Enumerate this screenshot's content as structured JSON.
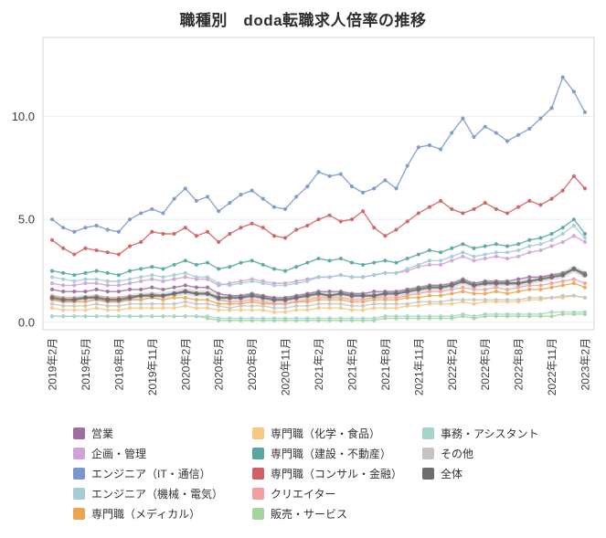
{
  "chart_data": {
    "type": "line",
    "title": "職種別　doda転職求人倍率の推移",
    "xlabel": "",
    "ylabel": "",
    "ylim": [
      0,
      12.5
    ],
    "y_ticks": [
      0.0,
      5.0,
      10.0
    ],
    "y_tick_labels": [
      "0.0",
      "5.0",
      "10.0"
    ],
    "x_tick_every": 3,
    "x_tick_labels": [
      "2019年2月",
      "2019年5月",
      "2019年8月",
      "2019年11月",
      "2020年2月",
      "2020年5月",
      "2020年8月",
      "2020年11月",
      "2021年2月",
      "2021年5月",
      "2021年8月",
      "2021年11月",
      "2022年2月",
      "2022年5月",
      "2022年8月",
      "2022年11月",
      "2023年2月"
    ],
    "grid": true,
    "legend_position": "bottom",
    "categories": [
      "2019年2月",
      "2019年3月",
      "2019年4月",
      "2019年5月",
      "2019年6月",
      "2019年7月",
      "2019年8月",
      "2019年9月",
      "2019年10月",
      "2019年11月",
      "2019年12月",
      "2020年1月",
      "2020年2月",
      "2020年3月",
      "2020年4月",
      "2020年5月",
      "2020年6月",
      "2020年7月",
      "2020年8月",
      "2020年9月",
      "2020年10月",
      "2020年11月",
      "2020年12月",
      "2021年1月",
      "2021年2月",
      "2021年3月",
      "2021年4月",
      "2021年5月",
      "2021年6月",
      "2021年7月",
      "2021年8月",
      "2021年9月",
      "2021年10月",
      "2021年11月",
      "2021年12月",
      "2022年1月",
      "2022年2月",
      "2022年3月",
      "2022年4月",
      "2022年5月",
      "2022年6月",
      "2022年7月",
      "2022年8月",
      "2022年9月",
      "2022年10月",
      "2022年11月",
      "2022年12月",
      "2023年1月",
      "2023年2月"
    ],
    "series": [
      {
        "name": "営業",
        "color": "#9c6f9e",
        "values": [
          1.6,
          1.5,
          1.5,
          1.5,
          1.6,
          1.5,
          1.5,
          1.6,
          1.6,
          1.7,
          1.6,
          1.7,
          1.8,
          1.7,
          1.7,
          1.4,
          1.3,
          1.3,
          1.4,
          1.3,
          1.2,
          1.2,
          1.3,
          1.4,
          1.5,
          1.5,
          1.5,
          1.4,
          1.4,
          1.5,
          1.5,
          1.5,
          1.6,
          1.7,
          1.8,
          1.8,
          1.9,
          2.1,
          1.9,
          2.0,
          2.0,
          2.0,
          2.1,
          2.2,
          2.2,
          2.3,
          2.4,
          2.6,
          2.4
        ]
      },
      {
        "name": "企画・管理",
        "color": "#cfa3d6",
        "values": [
          1.9,
          1.8,
          1.8,
          1.9,
          1.9,
          1.8,
          1.8,
          1.9,
          2.0,
          2.1,
          2.0,
          2.1,
          2.2,
          2.1,
          2.1,
          1.8,
          1.9,
          2.0,
          2.1,
          2.0,
          1.9,
          1.9,
          2.0,
          2.1,
          2.2,
          2.2,
          2.3,
          2.2,
          2.2,
          2.3,
          2.4,
          2.4,
          2.5,
          2.7,
          2.8,
          2.8,
          3.0,
          3.2,
          3.0,
          3.1,
          3.2,
          3.1,
          3.2,
          3.4,
          3.5,
          3.7,
          3.9,
          4.2,
          3.9
        ]
      },
      {
        "name": "エンジニア（IT・通信）",
        "color": "#7b97c9",
        "values": [
          5.0,
          4.6,
          4.4,
          4.6,
          4.7,
          4.5,
          4.4,
          5.0,
          5.3,
          5.5,
          5.3,
          6.0,
          6.5,
          5.9,
          6.1,
          5.4,
          5.8,
          6.2,
          6.4,
          6.0,
          5.6,
          5.5,
          6.1,
          6.6,
          7.3,
          7.1,
          7.2,
          6.6,
          6.3,
          6.5,
          6.9,
          6.5,
          7.6,
          8.5,
          8.6,
          8.4,
          9.2,
          9.9,
          9.0,
          9.5,
          9.2,
          8.8,
          9.1,
          9.4,
          9.9,
          10.4,
          11.9,
          11.2,
          10.2
        ]
      },
      {
        "name": "エンジニア（機械・電気）",
        "color": "#a5cbd4",
        "values": [
          2.2,
          2.1,
          2.0,
          2.1,
          2.1,
          2.0,
          2.0,
          2.1,
          2.2,
          2.3,
          2.2,
          2.3,
          2.4,
          2.2,
          2.2,
          1.9,
          1.8,
          1.9,
          2.0,
          1.9,
          1.8,
          1.8,
          1.9,
          2.0,
          2.2,
          2.2,
          2.3,
          2.2,
          2.2,
          2.3,
          2.4,
          2.4,
          2.6,
          2.8,
          3.0,
          3.0,
          3.2,
          3.4,
          3.2,
          3.3,
          3.4,
          3.4,
          3.5,
          3.7,
          3.8,
          4.0,
          4.3,
          4.7,
          4.1
        ]
      },
      {
        "name": "専門職（メディカル）",
        "color": "#eaa64e",
        "values": [
          1.1,
          1.0,
          1.0,
          1.0,
          1.1,
          1.0,
          1.0,
          1.1,
          1.1,
          1.2,
          1.1,
          1.2,
          1.2,
          1.1,
          1.1,
          0.9,
          0.9,
          0.9,
          1.0,
          0.9,
          0.9,
          0.9,
          1.0,
          1.0,
          1.1,
          1.1,
          1.1,
          1.0,
          1.0,
          1.1,
          1.1,
          1.1,
          1.2,
          1.2,
          1.3,
          1.3,
          1.4,
          1.5,
          1.4,
          1.4,
          1.5,
          1.4,
          1.5,
          1.6,
          1.6,
          1.7,
          1.8,
          1.9,
          1.7
        ]
      },
      {
        "name": "専門職（化学・食品）",
        "color": "#f6c983",
        "values": [
          0.7,
          0.6,
          0.6,
          0.6,
          0.7,
          0.6,
          0.6,
          0.7,
          0.7,
          0.7,
          0.7,
          0.7,
          0.8,
          0.7,
          0.7,
          0.6,
          0.6,
          0.6,
          0.6,
          0.6,
          0.5,
          0.5,
          0.6,
          0.6,
          0.7,
          0.7,
          0.7,
          0.6,
          0.6,
          0.7,
          0.7,
          0.7,
          0.8,
          0.8,
          0.9,
          0.9,
          0.9,
          1.0,
          0.9,
          1.0,
          1.0,
          1.0,
          1.0,
          1.1,
          1.1,
          1.2,
          1.2,
          1.3,
          1.2
        ]
      },
      {
        "name": "専門職（建設・不動産）",
        "color": "#58a79e",
        "values": [
          2.5,
          2.4,
          2.3,
          2.4,
          2.5,
          2.4,
          2.3,
          2.5,
          2.6,
          2.7,
          2.6,
          2.8,
          3.0,
          2.8,
          2.9,
          2.6,
          2.7,
          2.9,
          3.0,
          2.8,
          2.6,
          2.5,
          2.7,
          2.9,
          3.1,
          3.0,
          3.1,
          2.9,
          2.8,
          2.9,
          3.0,
          2.9,
          3.1,
          3.3,
          3.5,
          3.4,
          3.6,
          3.8,
          3.6,
          3.7,
          3.8,
          3.7,
          3.8,
          4.0,
          4.1,
          4.3,
          4.6,
          5.0,
          4.3
        ]
      },
      {
        "name": "専門職（コンサル・金融）",
        "color": "#cf5f63",
        "values": [
          4.0,
          3.6,
          3.3,
          3.6,
          3.5,
          3.4,
          3.3,
          3.7,
          3.9,
          4.4,
          4.3,
          4.3,
          4.6,
          4.2,
          4.4,
          3.9,
          4.3,
          4.6,
          4.8,
          4.6,
          4.2,
          4.1,
          4.5,
          4.7,
          5.0,
          5.2,
          4.9,
          5.0,
          5.4,
          4.6,
          4.2,
          4.5,
          4.9,
          5.3,
          5.6,
          5.9,
          5.5,
          5.3,
          5.5,
          5.8,
          5.5,
          5.3,
          5.6,
          5.9,
          5.7,
          6.0,
          6.4,
          7.1,
          6.5
        ]
      },
      {
        "name": "クリエイター",
        "color": "#f19f9f",
        "values": [
          1.3,
          1.2,
          1.2,
          1.2,
          1.3,
          1.2,
          1.2,
          1.3,
          1.3,
          1.4,
          1.3,
          1.4,
          1.5,
          1.4,
          1.4,
          1.1,
          1.0,
          1.0,
          1.1,
          1.0,
          0.9,
          0.9,
          1.0,
          1.1,
          1.2,
          1.2,
          1.2,
          1.1,
          1.1,
          1.2,
          1.2,
          1.2,
          1.3,
          1.4,
          1.5,
          1.5,
          1.6,
          1.7,
          1.6,
          1.6,
          1.7,
          1.6,
          1.7,
          1.8,
          1.8,
          1.9,
          2.0,
          2.1,
          1.9
        ]
      },
      {
        "name": "販売・サービス",
        "color": "#a3d49a",
        "values": [
          0.3,
          0.3,
          0.3,
          0.3,
          0.3,
          0.3,
          0.3,
          0.3,
          0.3,
          0.3,
          0.3,
          0.3,
          0.3,
          0.3,
          0.2,
          0.1,
          0.1,
          0.1,
          0.1,
          0.1,
          0.1,
          0.1,
          0.1,
          0.1,
          0.1,
          0.1,
          0.1,
          0.1,
          0.1,
          0.1,
          0.2,
          0.2,
          0.2,
          0.2,
          0.2,
          0.2,
          0.2,
          0.3,
          0.2,
          0.3,
          0.3,
          0.3,
          0.3,
          0.3,
          0.3,
          0.3,
          0.4,
          0.4,
          0.4
        ]
      },
      {
        "name": "事務・アシスタント",
        "color": "#a6d4ca",
        "values": [
          0.3,
          0.3,
          0.3,
          0.3,
          0.3,
          0.3,
          0.3,
          0.3,
          0.3,
          0.3,
          0.3,
          0.3,
          0.3,
          0.3,
          0.3,
          0.2,
          0.2,
          0.2,
          0.2,
          0.2,
          0.2,
          0.2,
          0.2,
          0.2,
          0.2,
          0.2,
          0.2,
          0.2,
          0.2,
          0.2,
          0.3,
          0.3,
          0.3,
          0.3,
          0.3,
          0.3,
          0.3,
          0.4,
          0.3,
          0.4,
          0.4,
          0.4,
          0.4,
          0.4,
          0.4,
          0.5,
          0.5,
          0.5,
          0.5
        ]
      },
      {
        "name": "その他",
        "color": "#c4c4c4",
        "values": [
          0.9,
          0.8,
          0.8,
          0.8,
          0.9,
          0.8,
          0.8,
          0.9,
          0.9,
          0.9,
          0.9,
          0.9,
          1.0,
          0.9,
          0.9,
          0.8,
          0.7,
          0.8,
          0.8,
          0.8,
          0.7,
          0.7,
          0.8,
          0.8,
          0.9,
          0.9,
          0.9,
          0.8,
          0.8,
          0.9,
          0.9,
          0.9,
          0.9,
          1.0,
          1.0,
          1.0,
          1.1,
          1.1,
          1.1,
          1.1,
          1.1,
          1.1,
          1.1,
          1.2,
          1.2,
          1.2,
          1.3,
          1.3,
          1.2
        ]
      },
      {
        "name": "全体",
        "color": "#6e6e6e",
        "emphasis": true,
        "values": [
          1.2,
          1.1,
          1.1,
          1.2,
          1.2,
          1.1,
          1.1,
          1.2,
          1.3,
          1.3,
          1.3,
          1.4,
          1.5,
          1.4,
          1.4,
          1.2,
          1.2,
          1.2,
          1.3,
          1.2,
          1.1,
          1.1,
          1.2,
          1.3,
          1.4,
          1.3,
          1.4,
          1.3,
          1.3,
          1.3,
          1.4,
          1.4,
          1.5,
          1.6,
          1.7,
          1.7,
          1.8,
          2.0,
          1.8,
          1.9,
          1.9,
          1.9,
          1.9,
          2.0,
          2.1,
          2.2,
          2.3,
          2.6,
          2.3
        ]
      }
    ]
  }
}
